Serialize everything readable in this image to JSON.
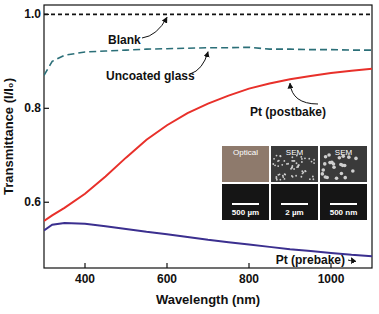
{
  "chart_data": {
    "type": "line",
    "x_label": "Wavelength (nm)",
    "y_label": "Transmittance (I/I₀)",
    "x": [
      300,
      320,
      350,
      400,
      450,
      500,
      550,
      600,
      650,
      700,
      750,
      800,
      850,
      900,
      950,
      1000,
      1050,
      1100
    ],
    "series": [
      {
        "name": "Blank",
        "color": "#111111",
        "line_style": "dashed",
        "values": [
          1,
          1,
          1,
          1,
          1,
          1,
          1,
          1,
          1,
          1,
          1,
          1,
          1,
          1,
          1,
          1,
          1,
          1
        ]
      },
      {
        "name": "Uncoated glass",
        "color": "#2b6f78",
        "line_style": "dashed",
        "values": [
          0.87,
          0.9,
          0.913,
          0.92,
          0.922,
          0.924,
          0.926,
          0.927,
          0.928,
          0.929,
          0.929,
          0.93,
          0.926,
          0.926,
          0.925,
          0.925,
          0.924,
          0.924
        ]
      },
      {
        "name": "Pt (postbake)",
        "color": "#e8302a",
        "line_style": "solid",
        "values": [
          0.56,
          0.572,
          0.588,
          0.618,
          0.655,
          0.695,
          0.733,
          0.764,
          0.79,
          0.81,
          0.827,
          0.842,
          0.853,
          0.862,
          0.869,
          0.875,
          0.88,
          0.884
        ]
      },
      {
        "name": "Pt (prebake)",
        "color": "#3b2f8f",
        "line_style": "solid",
        "values": [
          0.54,
          0.552,
          0.556,
          0.554,
          0.549,
          0.543,
          0.537,
          0.532,
          0.526,
          0.52,
          0.515,
          0.51,
          0.505,
          0.5,
          0.496,
          0.492,
          0.488,
          0.485
        ]
      }
    ],
    "xlim": [
      300,
      1100
    ],
    "xticks": [
      400,
      600,
      800,
      1000
    ],
    "ylim": [
      0.46,
      1.02
    ],
    "yticks": [
      0.6,
      0.8,
      {
        "value": 1,
        "label": "1.0"
      }
    ],
    "inset_panels": [
      {
        "title": "Optical",
        "scale_bar": "500 µm"
      },
      {
        "title": "SEM",
        "scale_bar": "2 µm"
      },
      {
        "title": "SEM",
        "scale_bar": "500 nm"
      }
    ]
  }
}
